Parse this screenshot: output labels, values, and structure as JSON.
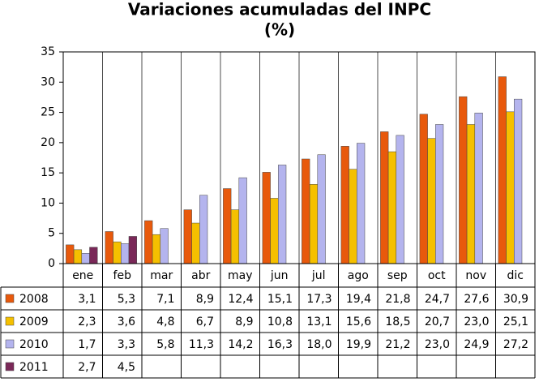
{
  "chart_data": {
    "type": "bar",
    "title": "Variaciones acumuladas del INPC",
    "subtitle": "(%)",
    "categories": [
      "ene",
      "feb",
      "mar",
      "abr",
      "may",
      "jun",
      "jul",
      "ago",
      "sep",
      "oct",
      "nov",
      "dic"
    ],
    "series": [
      {
        "name": "2008",
        "color": "#e8590c",
        "values": [
          3.1,
          5.3,
          7.1,
          8.9,
          12.4,
          15.1,
          17.3,
          19.4,
          21.8,
          24.7,
          27.6,
          30.9
        ],
        "value_labels": [
          "3,1",
          "5,3",
          "7,1",
          "8,9",
          "12,4",
          "15,1",
          "17,3",
          "19,4",
          "21,8",
          "24,7",
          "27,6",
          "30,9"
        ]
      },
      {
        "name": "2009",
        "color": "#f5c000",
        "values": [
          2.3,
          3.6,
          4.8,
          6.7,
          8.9,
          10.8,
          13.1,
          15.6,
          18.5,
          20.7,
          23.0,
          25.1
        ],
        "value_labels": [
          "2,3",
          "3,6",
          "4,8",
          "6,7",
          "8,9",
          "10,8",
          "13,1",
          "15,6",
          "18,5",
          "20,7",
          "23,0",
          "25,1"
        ]
      },
      {
        "name": "2010",
        "color": "#b4b4ee",
        "values": [
          1.7,
          3.3,
          5.8,
          11.3,
          14.2,
          16.3,
          18.0,
          19.9,
          21.2,
          23.0,
          24.9,
          27.2
        ],
        "value_labels": [
          "1,7",
          "3,3",
          "5,8",
          "11,3",
          "14,2",
          "16,3",
          "18,0",
          "19,9",
          "21,2",
          "23,0",
          "24,9",
          "27,2"
        ]
      },
      {
        "name": "2011",
        "color": "#7a2858",
        "values": [
          2.7,
          4.5,
          null,
          null,
          null,
          null,
          null,
          null,
          null,
          null,
          null,
          null
        ],
        "value_labels": [
          "2,7",
          "4,5",
          null,
          null,
          null,
          null,
          null,
          null,
          null,
          null,
          null,
          null
        ]
      }
    ],
    "ylim": [
      0,
      35
    ],
    "yticks": [
      0,
      5,
      10,
      15,
      20,
      25,
      30,
      35
    ],
    "grid": false
  }
}
